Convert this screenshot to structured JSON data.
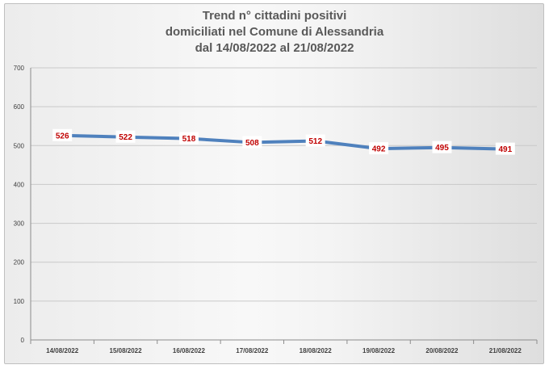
{
  "chart_data": {
    "type": "line",
    "title_lines": [
      "Trend n° cittadini positivi",
      "domiciliati nel Comune di Alessandria",
      "dal 14/08/2022 al 21/08/2022"
    ],
    "categories": [
      "14/08/2022",
      "15/08/2022",
      "16/08/2022",
      "17/08/2022",
      "18/08/2022",
      "19/08/2022",
      "20/08/2022",
      "21/08/2022"
    ],
    "series": [
      {
        "values": [
          526,
          522,
          518,
          508,
          512,
          492,
          495,
          491
        ]
      }
    ],
    "ylim": [
      0,
      700
    ],
    "yticks": [
      0,
      100,
      200,
      300,
      400,
      500,
      600,
      700
    ],
    "grid": true,
    "legend": "none",
    "line_color": "#4f81bd",
    "label_color": "#c00000"
  }
}
